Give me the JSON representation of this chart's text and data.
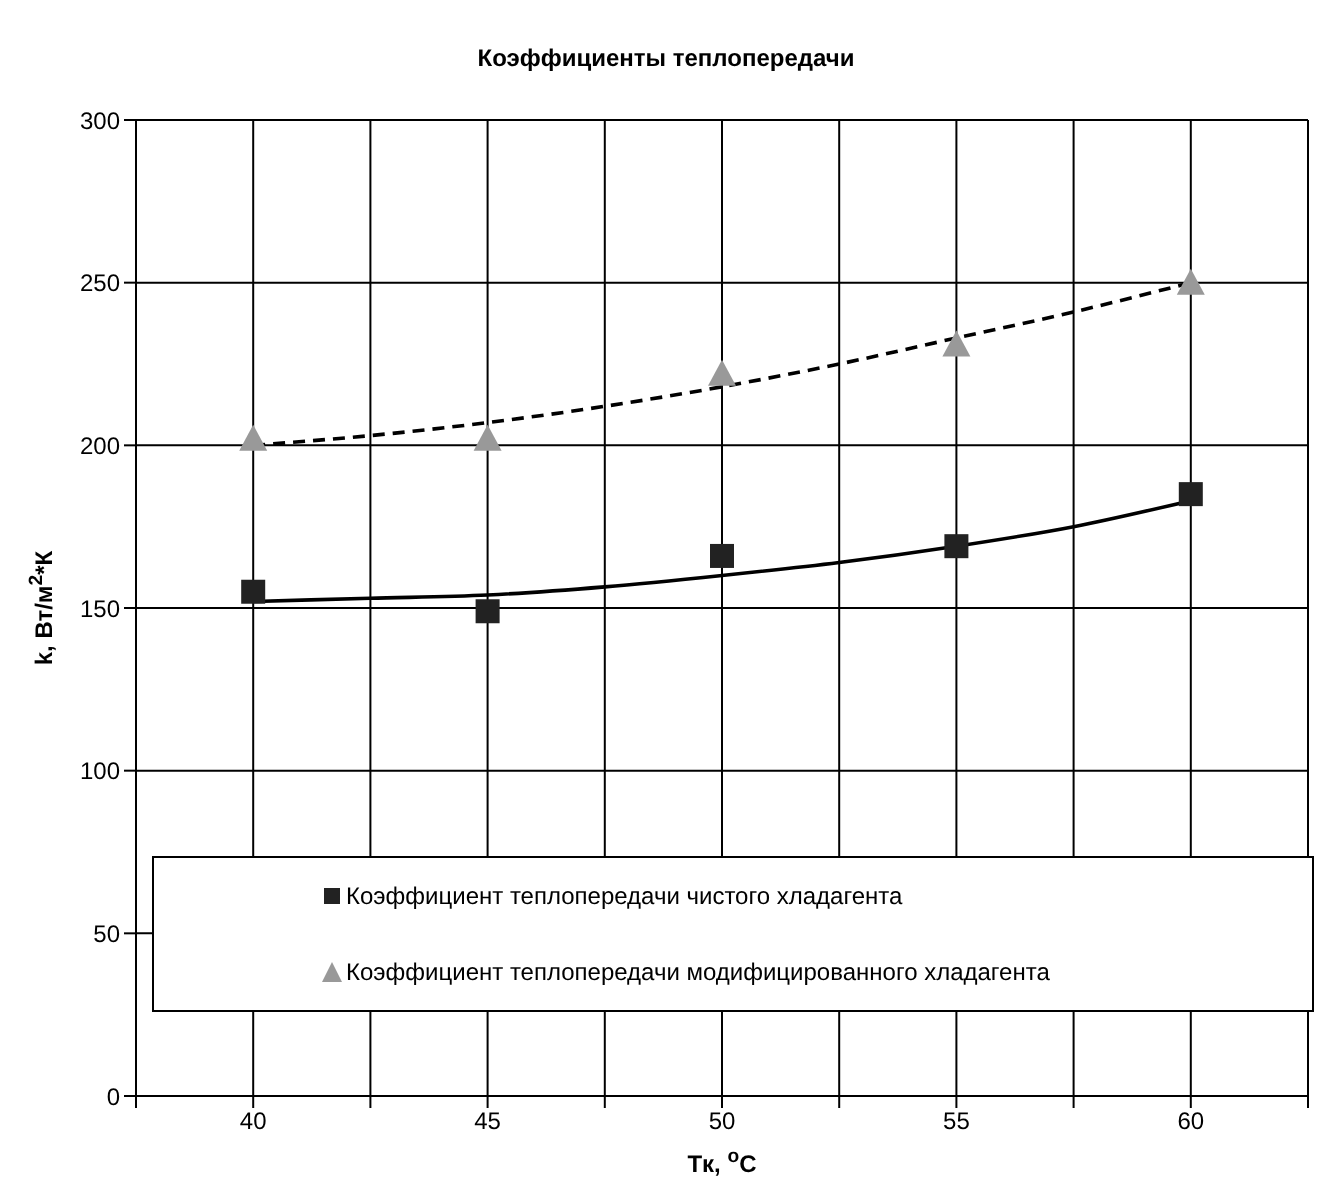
{
  "chart_data": {
    "type": "scatter",
    "title": "Коэффициенты теплопередачи",
    "xlabel": "Tк, $^{o}$C",
    "ylabel": "k, Вт/м$^{2}$*К",
    "x": [
      40,
      45,
      50,
      55,
      60
    ],
    "series": [
      {
        "name": "Коэффициент теплопередачи чистого хладагента",
        "color": "#222222",
        "marker": "square",
        "values": [
          155,
          149,
          166,
          169,
          185
        ]
      },
      {
        "name": "Коэффициент теплопередачи модифицированного хладагента",
        "color": "#999999",
        "marker": "triangle",
        "values": [
          202,
          202,
          222,
          231,
          250
        ]
      },
      {
        "type": "line",
        "color": "#000000",
        "line_style": "solid",
        "marker": "none",
        "x": [
          40,
          42.5,
          45,
          47.5,
          50,
          52.5,
          55,
          57.5,
          60
        ],
        "values": [
          152,
          153,
          154,
          156.5,
          160,
          164,
          169,
          175,
          183
        ]
      },
      {
        "type": "line",
        "color": "#000000",
        "line_style": "dashed",
        "marker": "none",
        "x": [
          40,
          42.5,
          45,
          47.5,
          50,
          52.5,
          55,
          57.5,
          60
        ],
        "values": [
          200,
          203,
          207,
          212,
          218,
          225,
          233,
          241,
          250
        ]
      }
    ],
    "xlim": [
      37.5,
      62.5
    ],
    "xticks": [
      {
        "value": 37.5,
        "label": null
      },
      40,
      {
        "value": 42.5,
        "label": null
      },
      45,
      {
        "value": 47.5,
        "label": null
      },
      50,
      {
        "value": 52.5,
        "label": null
      },
      55,
      {
        "value": 57.5,
        "label": null
      },
      60,
      {
        "value": 62.5,
        "label": null
      }
    ],
    "ylim": [
      0,
      300
    ],
    "yticks": [
      0,
      50,
      100,
      150,
      200,
      250,
      300
    ],
    "grid": true,
    "legend": "bottom"
  }
}
